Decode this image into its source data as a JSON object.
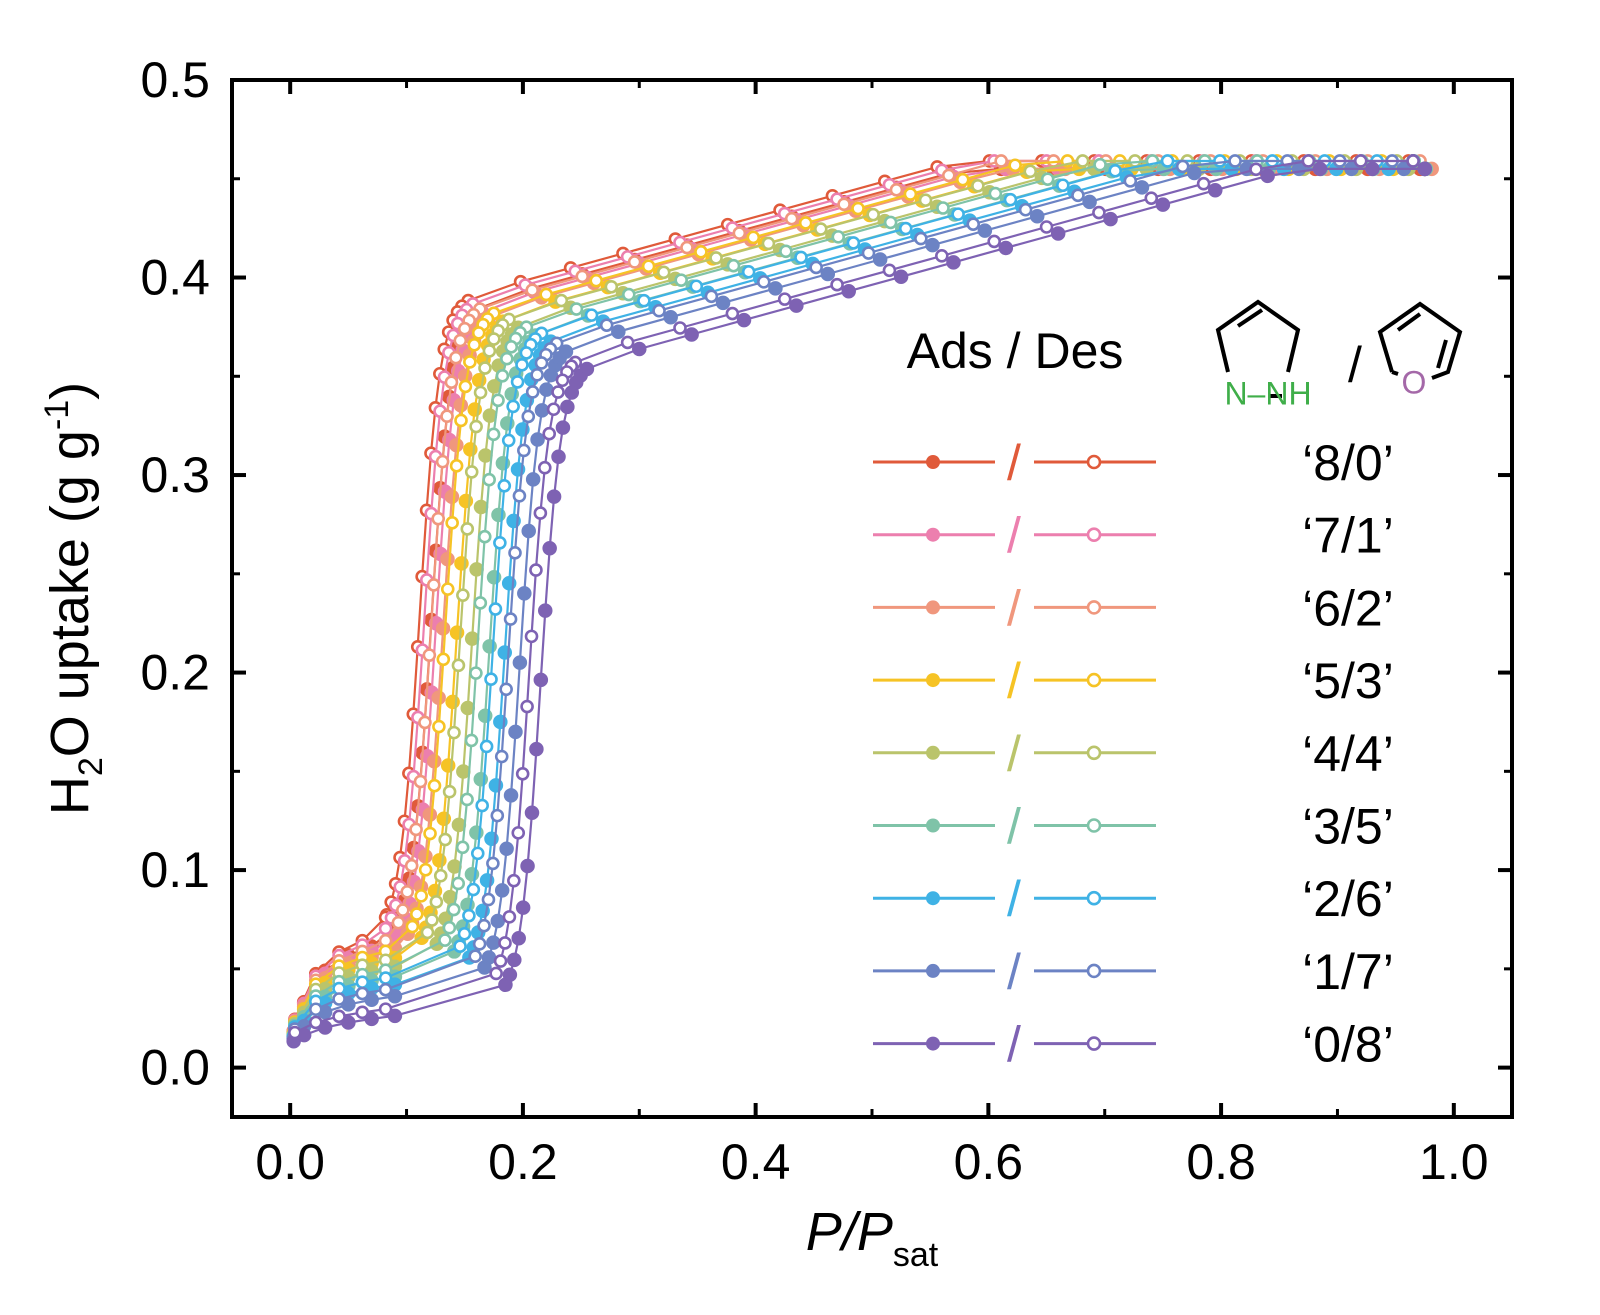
{
  "chart_data": {
    "type": "line",
    "xlabel": {
      "main": "P/P",
      "sub": "sat"
    },
    "ylabel": {
      "main": "H",
      "sub": "2",
      "rest": "O uptake (g g",
      "sup": "-1",
      "end": ")"
    },
    "xlim": [
      -0.05,
      1.05
    ],
    "ylim": [
      -0.025,
      0.5
    ],
    "xticks": [
      "0.0",
      "0.2",
      "0.4",
      "0.6",
      "0.8",
      "1.0"
    ],
    "yticks": [
      "0.0",
      "0.1",
      "0.2",
      "0.3",
      "0.4",
      "0.5"
    ],
    "legend": {
      "header": "Ads / Des",
      "separator": "/",
      "molecule_left_label": "N–NH",
      "molecule_right_label": "O",
      "mol_colors": {
        "left": "#3fae49",
        "right": "#a468a8"
      }
    },
    "series": [
      {
        "name": "'8/0'",
        "label": "‘8/0’",
        "color": "#e05a3a",
        "step_x": 0.121,
        "init": 0.045
      },
      {
        "name": "'7/1'",
        "label": "‘7/1’",
        "color": "#ec7fae",
        "step_x": 0.125,
        "init": 0.043
      },
      {
        "name": "'6/2'",
        "label": "‘6/2’",
        "color": "#f0977d",
        "step_x": 0.131,
        "init": 0.04
      },
      {
        "name": "'5/3'",
        "label": "‘5/3’",
        "color": "#f6c325",
        "step_x": 0.143,
        "init": 0.037
      },
      {
        "name": "'4/4'",
        "label": "‘4/4’",
        "color": "#bac46b",
        "step_x": 0.156,
        "init": 0.033
      },
      {
        "name": "'3/5'",
        "label": "‘3/5’",
        "color": "#7fc3a8",
        "step_x": 0.171,
        "init": 0.028
      },
      {
        "name": "'2/6'",
        "label": "‘2/6’",
        "color": "#3fb2e5",
        "step_x": 0.184,
        "init": 0.024
      },
      {
        "name": "'1/7'",
        "label": "‘1/7’",
        "color": "#6c83c4",
        "step_x": 0.197,
        "init": 0.018
      },
      {
        "name": "'0/8'",
        "label": "‘0/8’",
        "color": "#7e62b3",
        "step_x": 0.215,
        "init": 0.008
      }
    ]
  }
}
